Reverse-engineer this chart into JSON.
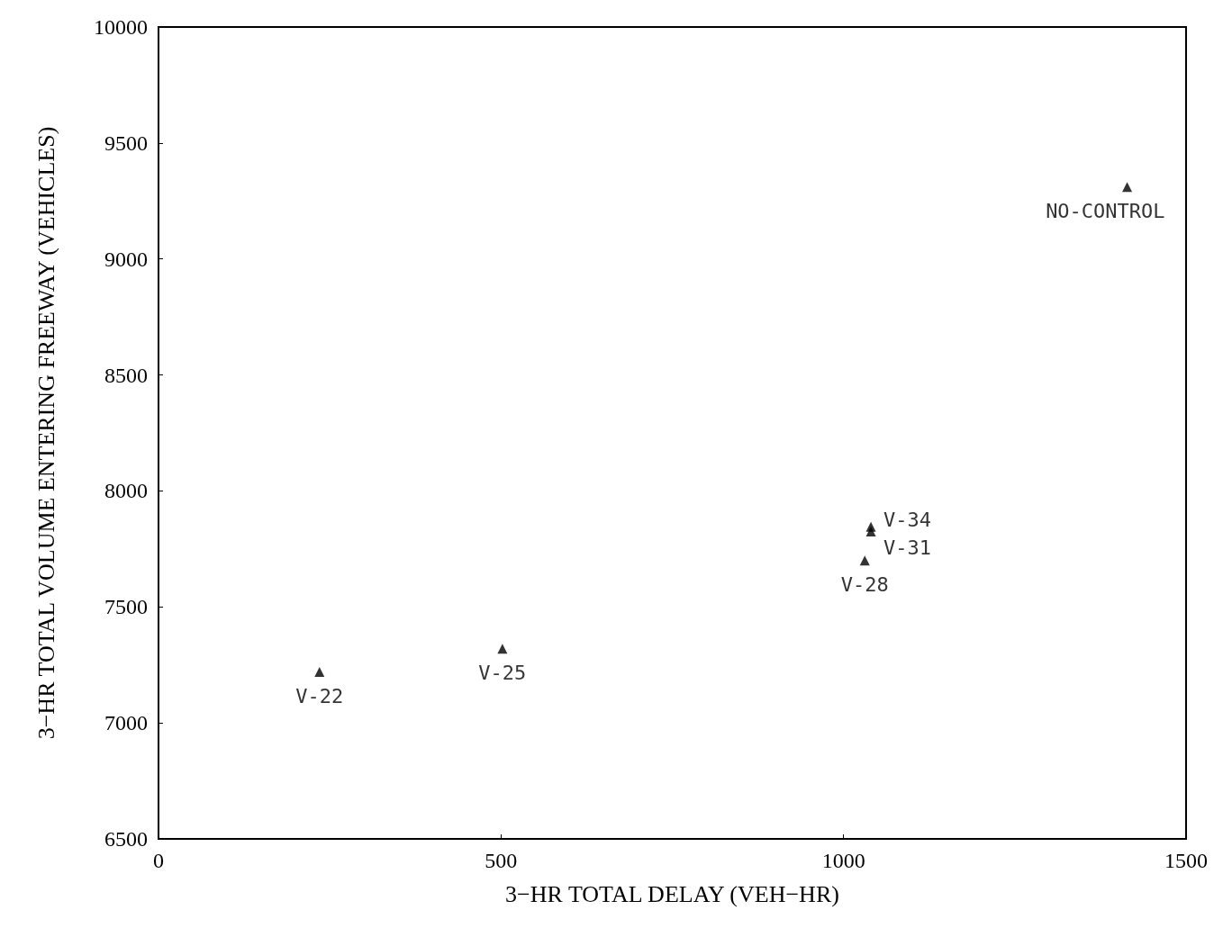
{
  "chart_data": {
    "type": "scatter",
    "xlabel": "3−HR TOTAL DELAY (VEH−HR)",
    "ylabel": "3−HR TOTAL VOLUME ENTERING FREEWAY (VEHICLES)",
    "x": [
      235,
      502,
      1031,
      1040,
      1040,
      1414
    ],
    "values": [
      7220,
      7320,
      7700,
      7825,
      7845,
      9310
    ],
    "color": "#000000",
    "marker": "triangle",
    "grid": false,
    "xlim": [
      0,
      1500
    ],
    "xticks": [
      0,
      500,
      1000,
      1500
    ],
    "ylim": [
      6500,
      10000
    ],
    "yticks": [
      6500,
      7000,
      7500,
      8000,
      8500,
      9000,
      9500,
      10000
    ],
    "annotations": [
      {
        "text": "V-22",
        "x": 235,
        "y": 7220
      },
      {
        "text": "V-25",
        "x": 502,
        "y": 7320
      },
      {
        "text": "V-28",
        "x": 1031,
        "y": 7700
      },
      {
        "text": "V-34",
        "x": 1040,
        "y": 7845
      },
      {
        "text": "V-31",
        "x": 1040,
        "y": 7825
      },
      {
        "text": "NO-CONTROL",
        "x": 1414,
        "y": 9310
      }
    ]
  }
}
